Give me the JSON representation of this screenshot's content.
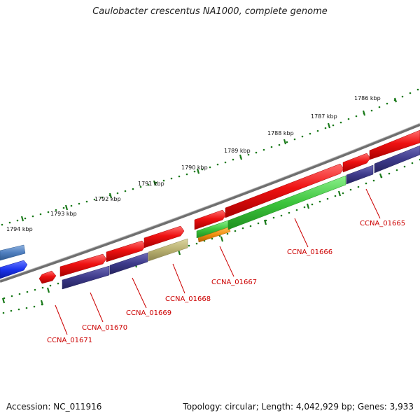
{
  "title": "Caulobacter crescentus NA1000, complete genome",
  "accession": "Accession: NC_011916",
  "topology": "Topology: circular; Length: 4,042,929 bp; Genes: 3,933",
  "colors": {
    "ruler_ticks": "#1a7a1a",
    "backbone": "#7a7a7a",
    "label": "#cc0000",
    "gene_red": "#ee1111",
    "gene_navy": "#3d3a8a",
    "gene_green": "#3cc43c",
    "gene_olive": "#b8b070",
    "gene_orange": "#f09010",
    "gene_blue": "#1a33ee",
    "gene_steel": "#4f7fbf"
  },
  "ruler": {
    "labels": [
      "1786 kbp",
      "1787 kbp",
      "1788 kbp",
      "1789 kbp",
      "1790 kbp",
      "1791 kbp",
      "1792 kbp",
      "1793 kbp",
      "1794 kbp"
    ]
  },
  "gene_labels": [
    "CCNA_01665",
    "CCNA_01666",
    "CCNA_01667",
    "CCNA_01668",
    "CCNA_01669",
    "CCNA_01670",
    "CCNA_01671"
  ]
}
